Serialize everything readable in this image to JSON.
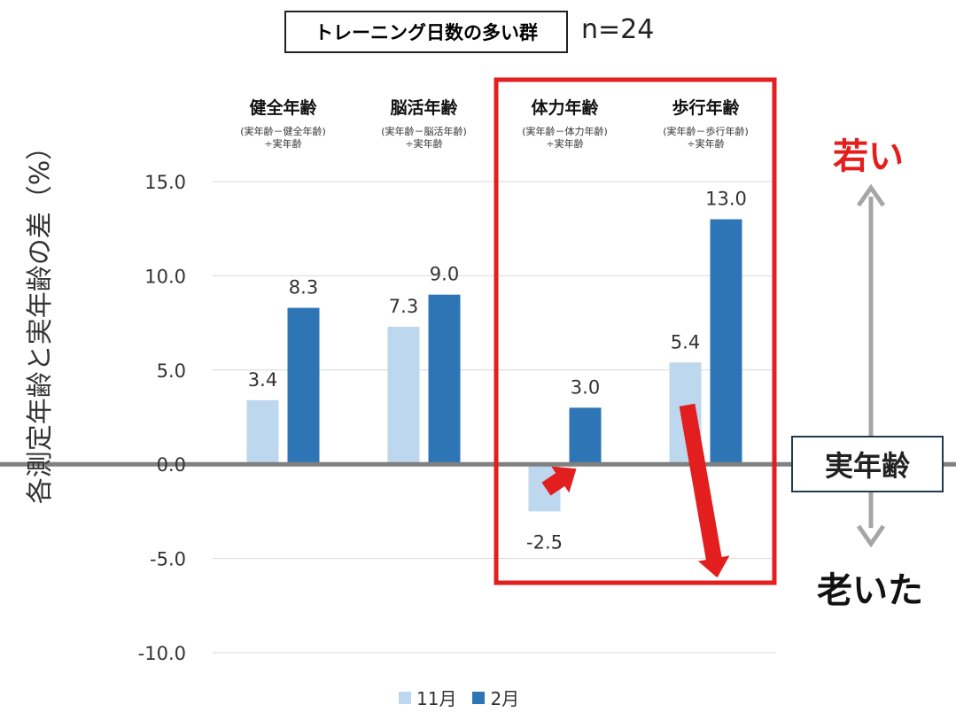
{
  "header": {
    "title": "トレーニング日数の多い群",
    "n_label": "n=24"
  },
  "side": {
    "young": "若い",
    "old": "老いた",
    "actual": "実年齢"
  },
  "colors": {
    "nov": "#bdd7ee",
    "feb": "#2e75b6",
    "highlight": "#e31e1e",
    "zero_line": "#808080",
    "arrow": "#a6a6a6"
  },
  "chart_data": {
    "type": "bar",
    "ylabel": "各測定年齢と実年齢の差（%）",
    "ylim": [
      -10,
      15
    ],
    "yticks": [
      {
        "value": 15,
        "label": "15.0"
      },
      {
        "value": 10,
        "label": "10.0"
      },
      {
        "value": 5,
        "label": "5.0"
      },
      {
        "value": 0,
        "label": "0.0"
      },
      {
        "value": -5,
        "label": "-5.0"
      },
      {
        "value": -10,
        "label": "-10.0"
      }
    ],
    "categories": [
      {
        "name": "健全年齢",
        "formula1": "(実年齢－健全年齢)",
        "formula2": "÷実年齢"
      },
      {
        "name": "脳活年齢",
        "formula1": "(実年齢－脳活年齢)",
        "formula2": "÷実年齢"
      },
      {
        "name": "体力年齢",
        "formula1": "(実年齢－体力年齢)",
        "formula2": "÷実年齢"
      },
      {
        "name": "歩行年齢",
        "formula1": "(実年齢－歩行年齢)",
        "formula2": "÷実年齢"
      }
    ],
    "series": [
      {
        "name": "11月",
        "color": "#bdd7ee",
        "values": [
          3.4,
          7.3,
          -2.5,
          5.4
        ],
        "labels": [
          "3.4",
          "7.3",
          "-2.5",
          "5.4"
        ]
      },
      {
        "name": "2月",
        "color": "#2e75b6",
        "values": [
          8.3,
          9.0,
          3.0,
          13.0
        ],
        "labels": [
          "8.3",
          "9.0",
          "3.0",
          "13.0"
        ]
      }
    ],
    "highlighted_categories": [
      "体力年齢",
      "歩行年齢"
    ],
    "legend": "bottom"
  }
}
